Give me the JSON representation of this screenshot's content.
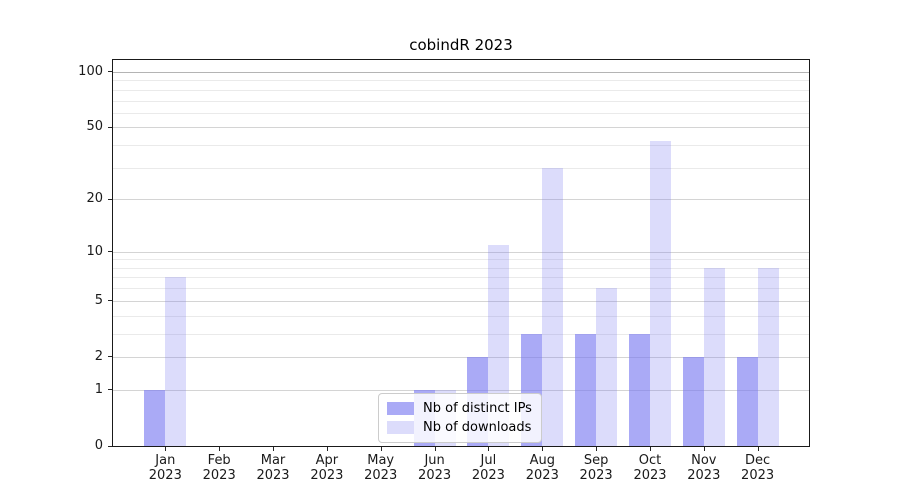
{
  "title": "cobindR 2023",
  "chart_data": {
    "type": "bar",
    "title": "cobindR 2023",
    "categories": [
      {
        "month": "Jan",
        "year": "2023"
      },
      {
        "month": "Feb",
        "year": "2023"
      },
      {
        "month": "Mar",
        "year": "2023"
      },
      {
        "month": "Apr",
        "year": "2023"
      },
      {
        "month": "May",
        "year": "2023"
      },
      {
        "month": "Jun",
        "year": "2023"
      },
      {
        "month": "Jul",
        "year": "2023"
      },
      {
        "month": "Aug",
        "year": "2023"
      },
      {
        "month": "Sep",
        "year": "2023"
      },
      {
        "month": "Oct",
        "year": "2023"
      },
      {
        "month": "Nov",
        "year": "2023"
      },
      {
        "month": "Dec",
        "year": "2023"
      }
    ],
    "series": [
      {
        "name": "Nb of distinct IPs",
        "color": "rgba(120,120,240,0.63)",
        "values": [
          1,
          0,
          0,
          0,
          0,
          1,
          2,
          3,
          3,
          3,
          2,
          2
        ]
      },
      {
        "name": "Nb of downloads",
        "color": "rgba(120,120,240,0.26)",
        "values": [
          7,
          0,
          0,
          0,
          0,
          1,
          11,
          30,
          6,
          42,
          8,
          8
        ]
      }
    ],
    "y_axis": {
      "scale": "log1p",
      "ticks": [
        {
          "label": "100",
          "value": 100
        },
        {
          "label": "50",
          "value": 50
        },
        {
          "label": "20",
          "value": 20
        },
        {
          "label": "10",
          "value": 10
        },
        {
          "label": "5",
          "value": 5
        },
        {
          "label": "2",
          "value": 2
        },
        {
          "label": "1",
          "value": 1
        },
        {
          "label": "0",
          "value": 0
        }
      ],
      "minor_gridlines": [
        90,
        80,
        70,
        60,
        40,
        30,
        9,
        8,
        7,
        6,
        4,
        3
      ],
      "top_log10_1p": 2.068,
      "ylim": [
        0,
        116
      ]
    },
    "xlabel": "",
    "ylabel": "",
    "grid": true,
    "legend": {
      "position": "lower center"
    }
  }
}
